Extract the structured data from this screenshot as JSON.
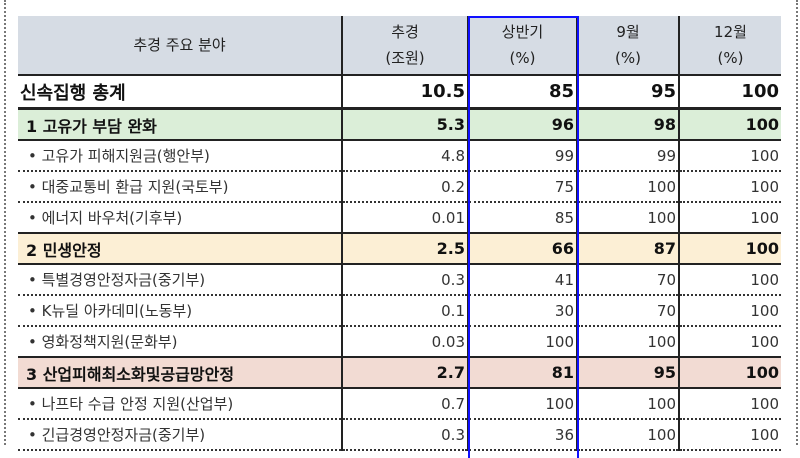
{
  "header": {
    "col0": "추경 주요 분야",
    "col1": [
      "추경",
      "(조원)"
    ],
    "col2": [
      "상반기",
      "(%)"
    ],
    "col3": [
      "9월",
      "(%)"
    ],
    "col4": [
      "12월",
      "(%)"
    ]
  },
  "colors": {
    "header_bg": "#d6dce4",
    "section1_bg": "#dbeed8",
    "section2_bg": "#fcefd5",
    "section3_bg": "#f2dbd3",
    "highlight_border": "#1010ff"
  },
  "rows": [
    {
      "type": "total",
      "name": "신속집행 총계",
      "budget": "10.5",
      "h1": "85",
      "sep": "95",
      "dec": "100"
    },
    {
      "type": "sec",
      "bg": "#dbeed8",
      "name": "1  고유가 부담 완화",
      "budget": "5.3",
      "h1": "96",
      "sep": "98",
      "dec": "100"
    },
    {
      "type": "sub",
      "name": "•  고유가 피해지원금(행안부)",
      "budget": "4.8",
      "h1": "99",
      "sep": "99",
      "dec": "100"
    },
    {
      "type": "sub",
      "name": "•  대중교통비 환급 지원(국토부)",
      "budget": "0.2",
      "h1": "75",
      "sep": "100",
      "dec": "100"
    },
    {
      "type": "sub",
      "name": "•  에너지 바우처(기후부)",
      "budget": "0.01",
      "h1": "85",
      "sep": "100",
      "dec": "100"
    },
    {
      "type": "sec",
      "bg": "#fcefd5",
      "name": "2  민생안정",
      "budget": "2.5",
      "h1": "66",
      "sep": "87",
      "dec": "100"
    },
    {
      "type": "sub",
      "name": "•  특별경영안정자금(중기부)",
      "budget": "0.3",
      "h1": "41",
      "sep": "70",
      "dec": "100"
    },
    {
      "type": "sub",
      "name": "•  K뉴딜 아카데미(노동부)",
      "budget": "0.1",
      "h1": "30",
      "sep": "70",
      "dec": "100"
    },
    {
      "type": "sub",
      "name": "•  영화정책지원(문화부)",
      "budget": "0.03",
      "h1": "100",
      "sep": "100",
      "dec": "100"
    },
    {
      "type": "sec",
      "bg": "#f2dbd3",
      "name": "3  산업피해최소화및공급망안정",
      "budget": "2.7",
      "h1": "81",
      "sep": "95",
      "dec": "100"
    },
    {
      "type": "sub",
      "name": "•  나프타 수급 안정 지원(산업부)",
      "budget": "0.7",
      "h1": "100",
      "sep": "100",
      "dec": "100"
    },
    {
      "type": "sub",
      "name": "•  긴급경영안정자금(중기부)",
      "budget": "0.3",
      "h1": "36",
      "sep": "100",
      "dec": "100"
    }
  ]
}
